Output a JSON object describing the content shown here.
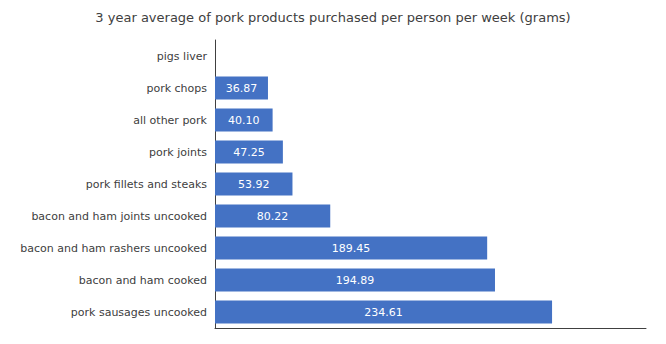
{
  "chart_data": {
    "type": "bar",
    "orientation": "horizontal",
    "title": "3 year average of pork products purchased per person per week (grams)",
    "categories": [
      "pigs liver",
      "pork chops",
      "all other pork",
      "pork joints",
      "pork fillets and steaks",
      "bacon and ham joints uncooked",
      "bacon and ham rashers uncooked",
      "bacon and ham cooked",
      "pork sausages uncooked"
    ],
    "values": [
      0,
      36.87,
      40.1,
      47.25,
      53.92,
      80.22,
      189.45,
      194.89,
      234.61
    ],
    "value_labels": [
      null,
      "36.87",
      "40.10",
      "47.25",
      "53.92",
      "80.22",
      "189.45",
      "194.89",
      "234.61"
    ],
    "color": "#4472C4",
    "xlim": [
      0,
      300
    ],
    "data_labels": true,
    "tick_labels": "y",
    "grid": false
  }
}
